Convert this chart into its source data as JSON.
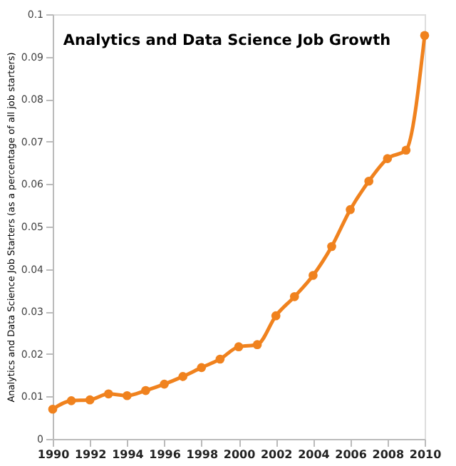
{
  "chart_data": {
    "type": "line",
    "title": "Analytics and Data Science Job Growth",
    "ylabel": "Analytics and Data Science Job Starters (as a percentage of all job starters)",
    "x": [
      1990,
      1991,
      1992,
      1993,
      1994,
      1995,
      1996,
      1997,
      1998,
      1999,
      2000,
      2001,
      2002,
      2003,
      2004,
      2005,
      2006,
      2007,
      2008,
      2009,
      2010
    ],
    "series": [
      {
        "color": "#f0821e",
        "values": [
          0.007,
          0.009,
          0.0092,
          0.0106,
          0.0102,
          0.0114,
          0.0129,
          0.0147,
          0.0168,
          0.0188,
          0.0217,
          0.0222,
          0.029,
          0.0335,
          0.0385,
          0.0453,
          0.054,
          0.0607,
          0.066,
          0.068,
          0.095
        ]
      }
    ],
    "xlim": [
      1990,
      2010
    ],
    "xticks": [
      1990,
      1992,
      1994,
      1996,
      1998,
      2000,
      2002,
      2004,
      2006,
      2008,
      2010
    ],
    "ylim": [
      0,
      0.1
    ],
    "yticks": [
      0,
      0.01,
      0.02,
      0.03,
      0.04,
      0.05,
      0.06,
      0.07,
      0.08,
      0.09,
      0.1
    ],
    "grid": false,
    "marker": "circle",
    "line_style": "solid",
    "legend": false
  }
}
